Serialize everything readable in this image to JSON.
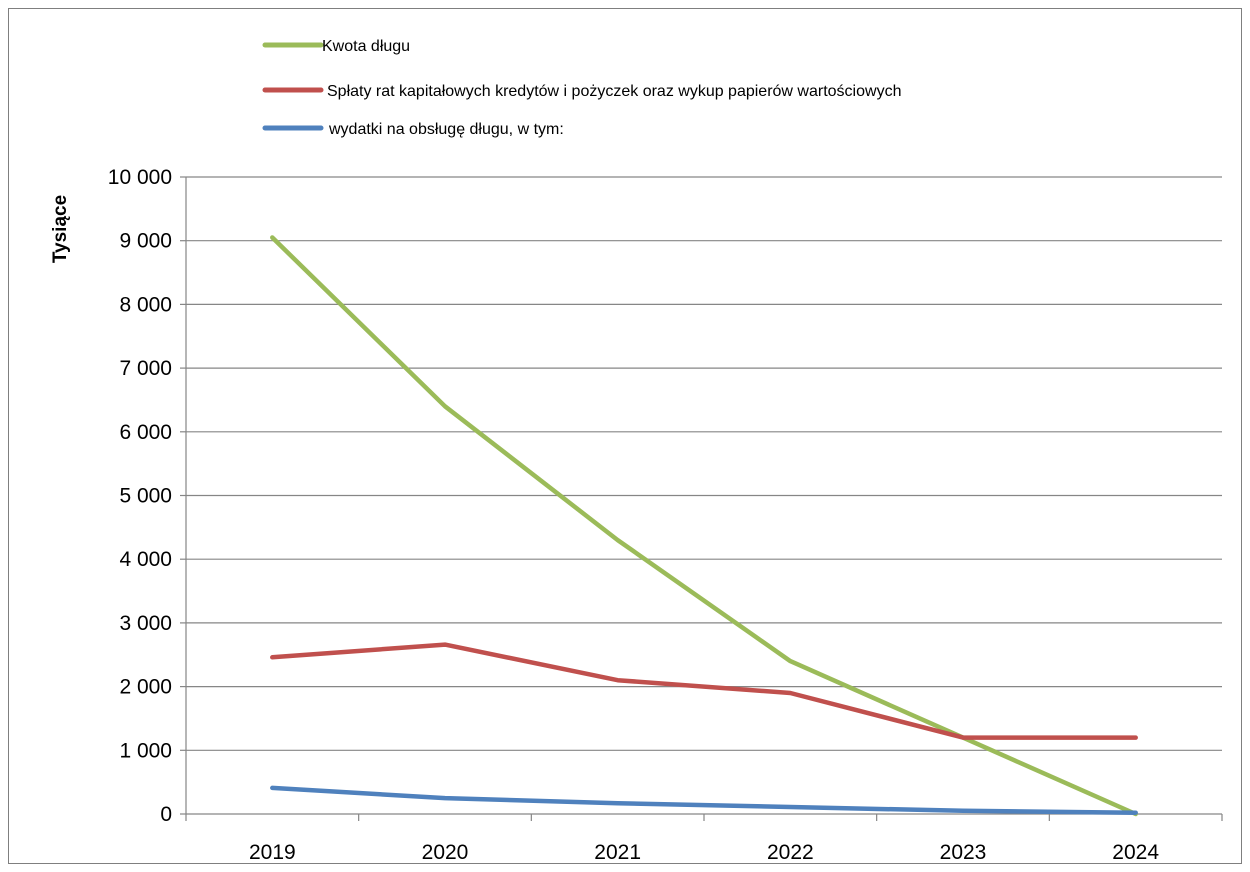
{
  "chart_data": {
    "type": "line",
    "title": "",
    "xlabel": "",
    "ylabel": "Tysiące",
    "categories": [
      "2019",
      "2020",
      "2021",
      "2022",
      "2023",
      "2024"
    ],
    "ylim": [
      0,
      10000
    ],
    "y_ticks": [
      0,
      1000,
      2000,
      3000,
      4000,
      5000,
      6000,
      7000,
      8000,
      9000,
      10000
    ],
    "y_tick_labels": [
      "0",
      "1 000",
      "2 000",
      "3 000",
      "4 000",
      "5 000",
      "6 000",
      "7 000",
      "8 000",
      "9 000",
      "10 000"
    ],
    "grid": true,
    "legend_position": "top",
    "series": [
      {
        "name": "Kwota długu",
        "color": "#9bbb59",
        "values": [
          9050,
          6400,
          4300,
          2400,
          1200,
          0
        ]
      },
      {
        "name": "Spłaty rat kapitałowych kredytów i pożyczek oraz wykup papierów wartościowych",
        "color": "#c0504d",
        "values": [
          2460,
          2660,
          2100,
          1900,
          1200,
          1200
        ]
      },
      {
        "name": " wydatki na obsługę długu, w tym:",
        "color": "#4f81bd",
        "values": [
          410,
          250,
          170,
          110,
          50,
          20
        ]
      }
    ]
  }
}
